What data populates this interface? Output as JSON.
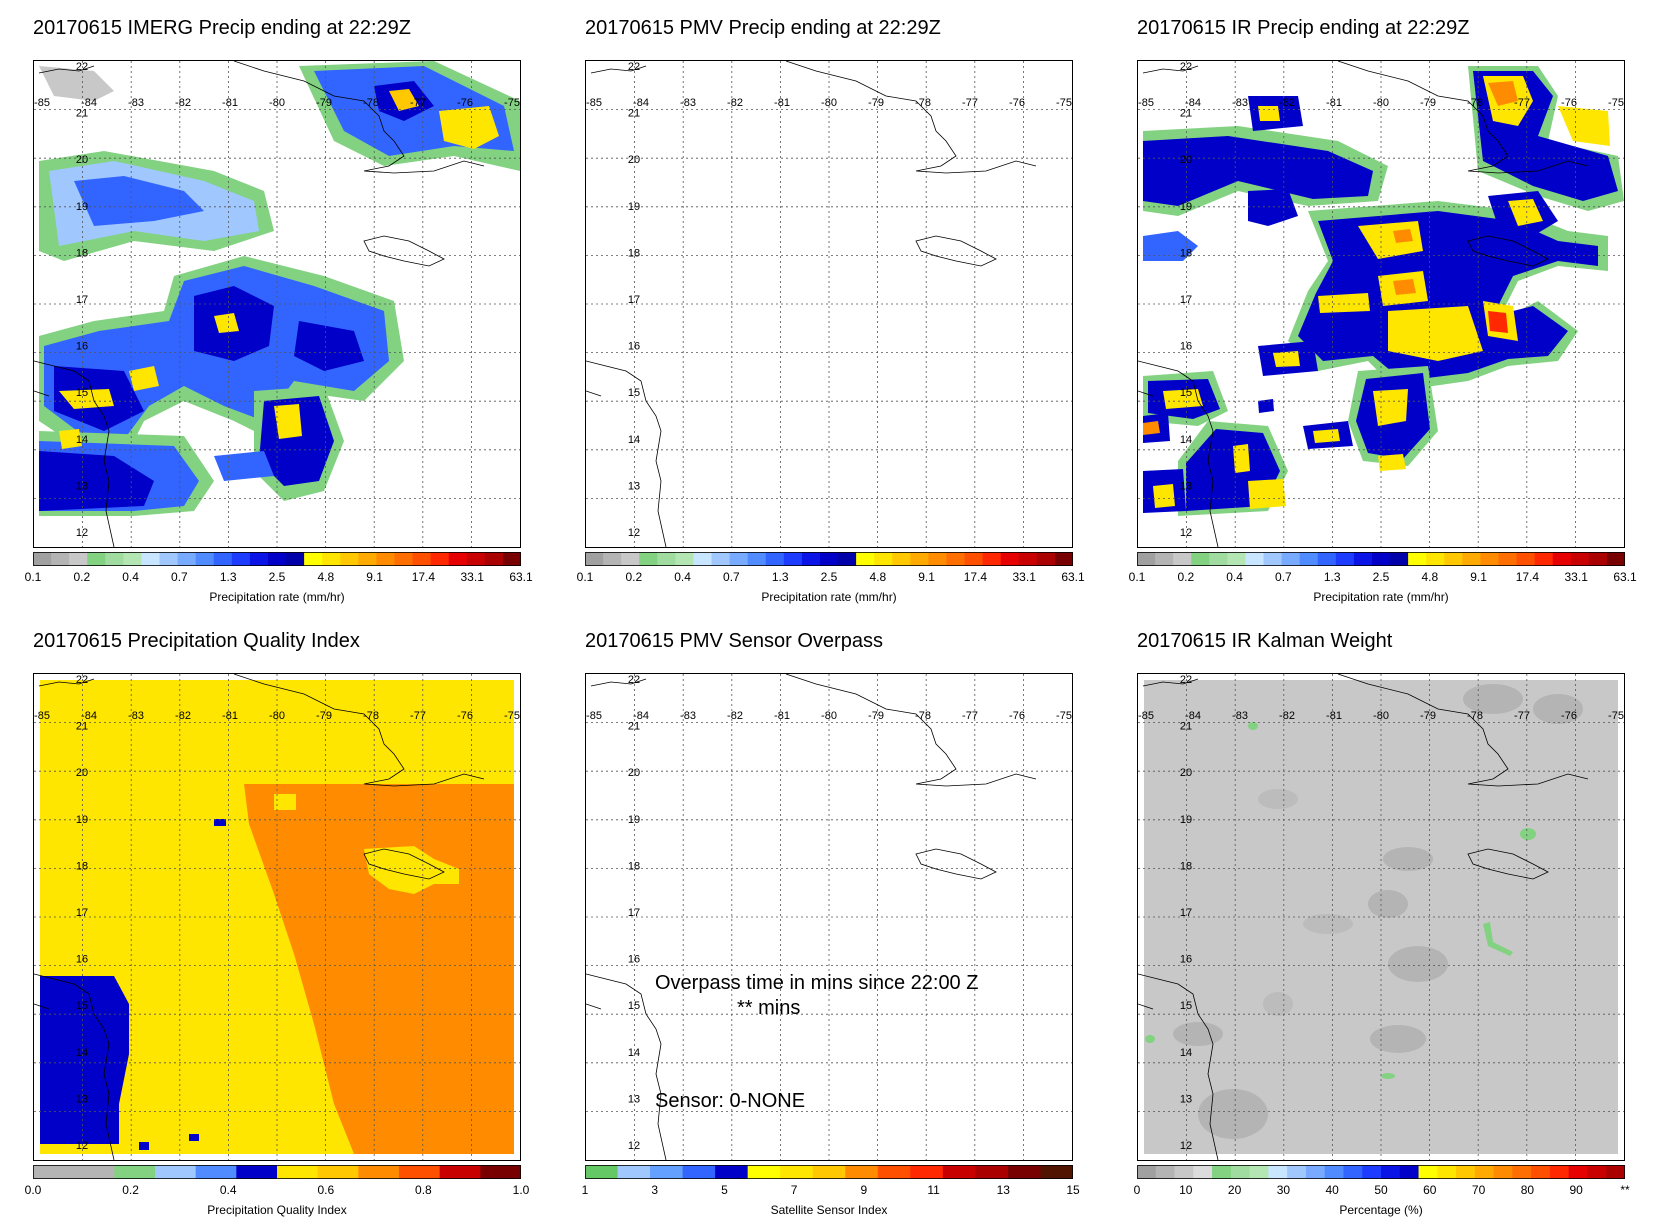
{
  "axes": {
    "lon_labels": [
      "-85",
      "-84",
      "-83",
      "-82",
      "-81",
      "-80",
      "-79",
      "-78",
      "-77",
      "-76",
      "-75"
    ],
    "lat_labels": [
      "22",
      "21",
      "20",
      "19",
      "18",
      "17",
      "16",
      "15",
      "14",
      "13",
      "12"
    ]
  },
  "panels": [
    {
      "id": "imerg",
      "title": "20170615 IMERG Precip ending at 22:29Z",
      "cbar_label": "Precipitation rate (mm/hr)",
      "ticks": [
        "0.1",
        "0.2",
        "0.4",
        "0.7",
        "1.3",
        "2.5",
        "4.8",
        "9.1",
        "17.4",
        "33.1",
        "63.1"
      ]
    },
    {
      "id": "pmv",
      "title": "20170615 PMV Precip ending at 22:29Z",
      "cbar_label": "Precipitation rate (mm/hr)",
      "ticks": [
        "0.1",
        "0.2",
        "0.4",
        "0.7",
        "1.3",
        "2.5",
        "4.8",
        "9.1",
        "17.4",
        "33.1",
        "63.1"
      ]
    },
    {
      "id": "ir",
      "title": "20170615 IR Precip ending at 22:29Z",
      "cbar_label": "Precipitation rate (mm/hr)",
      "ticks": [
        "0.1",
        "0.2",
        "0.4",
        "0.7",
        "1.3",
        "2.5",
        "4.8",
        "9.1",
        "17.4",
        "33.1",
        "63.1"
      ]
    },
    {
      "id": "pqi",
      "title": "20170615 Precipitation Quality Index",
      "cbar_label": "Precipitation Quality Index",
      "ticks": [
        "0.0",
        "0.2",
        "0.4",
        "0.6",
        "0.8",
        "1.0"
      ]
    },
    {
      "id": "overpass",
      "title": "20170615 PMV Sensor Overpass",
      "cbar_label": "Satellite Sensor Index",
      "ticks": [
        "1",
        "3",
        "5",
        "7",
        "9",
        "11",
        "13",
        "15"
      ]
    },
    {
      "id": "kalman",
      "title": "20170615 IR Kalman Weight",
      "cbar_label": "Percentage (%)",
      "ticks": [
        "0",
        "10",
        "20",
        "30",
        "40",
        "50",
        "60",
        "70",
        "80",
        "90",
        "**"
      ]
    }
  ],
  "overpass_text": {
    "line1": "Overpass time in mins since 22:00 Z",
    "line2": "** mins",
    "sensor": "Sensor:   0-NONE"
  },
  "colors": {
    "precip": [
      "#a0a0a0",
      "#b4b4b4",
      "#c8c8c8",
      "#82d282",
      "#a0dca0",
      "#b4e6b4",
      "#c8e6ff",
      "#a0c8ff",
      "#78aaff",
      "#508cff",
      "#3264ff",
      "#1e3cff",
      "#0a14e6",
      "#0000c8",
      "#0000aa",
      "#ffff00",
      "#ffe600",
      "#ffc800",
      "#ffaa00",
      "#ff8c00",
      "#ff6e00",
      "#ff5000",
      "#ff2800",
      "#e60000",
      "#c80000",
      "#aa0000",
      "#780000"
    ],
    "pqi": [
      "#b4b4b4",
      "#b4b4b4",
      "#82d282",
      "#a0c8ff",
      "#508cff",
      "#0000c8",
      "#ffe600",
      "#ffc800",
      "#ff8c00",
      "#ff5000",
      "#c80000",
      "#780000"
    ],
    "sensor": [
      "#64c864",
      "#a0c8ff",
      "#64a0ff",
      "#3264ff",
      "#0000c8",
      "#ffff00",
      "#ffe600",
      "#ffc800",
      "#ff8c00",
      "#ff5000",
      "#ff2800",
      "#c80000",
      "#aa0000",
      "#780000",
      "#501400"
    ],
    "kalman": [
      "#a0a0a0",
      "#b4b4b4",
      "#c8c8c8",
      "#dcdcdc",
      "#82d282",
      "#a0dca0",
      "#b4e6b4",
      "#c8e6ff",
      "#a0c8ff",
      "#78aaff",
      "#508cff",
      "#3264ff",
      "#1e3cff",
      "#0a14e6",
      "#0000c8",
      "#ffff00",
      "#ffe600",
      "#ffc800",
      "#ffaa00",
      "#ff8c00",
      "#ff6e00",
      "#ff5000",
      "#ff2800",
      "#e60000",
      "#c80000",
      "#aa0000"
    ]
  }
}
